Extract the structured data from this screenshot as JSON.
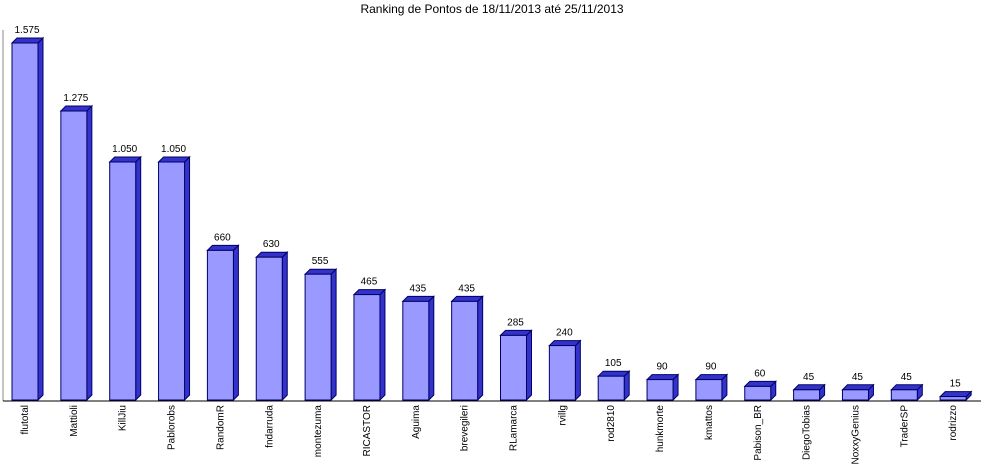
{
  "chart_data": {
    "type": "bar",
    "title": "Ranking de Pontos de 18/11/2013 até 25/11/2013",
    "categories": [
      "flutotal",
      "Mattioli",
      "KillJiu",
      "Pablorobs",
      "RandomR",
      "fndarruda",
      "montezuma",
      "RICASTOR",
      "Aguima",
      "brevegileri",
      "RLamarca",
      "rvillg",
      "rod2810",
      "hunkmorte",
      "kmattos",
      "Pabison_BR",
      "DiegoTobias",
      "NoxxyGenius",
      "TraderSP",
      "rodrizzo"
    ],
    "values": [
      1575,
      1275,
      1050,
      1050,
      660,
      630,
      555,
      465,
      435,
      435,
      285,
      240,
      105,
      90,
      90,
      60,
      45,
      45,
      45,
      15
    ],
    "value_labels": [
      "1.575",
      "1.275",
      "1.050",
      "1.050",
      "660",
      "630",
      "555",
      "465",
      "435",
      "435",
      "285",
      "240",
      "105",
      "90",
      "90",
      "60",
      "45",
      "45",
      "45",
      "15"
    ],
    "color": "#9999ff"
  }
}
